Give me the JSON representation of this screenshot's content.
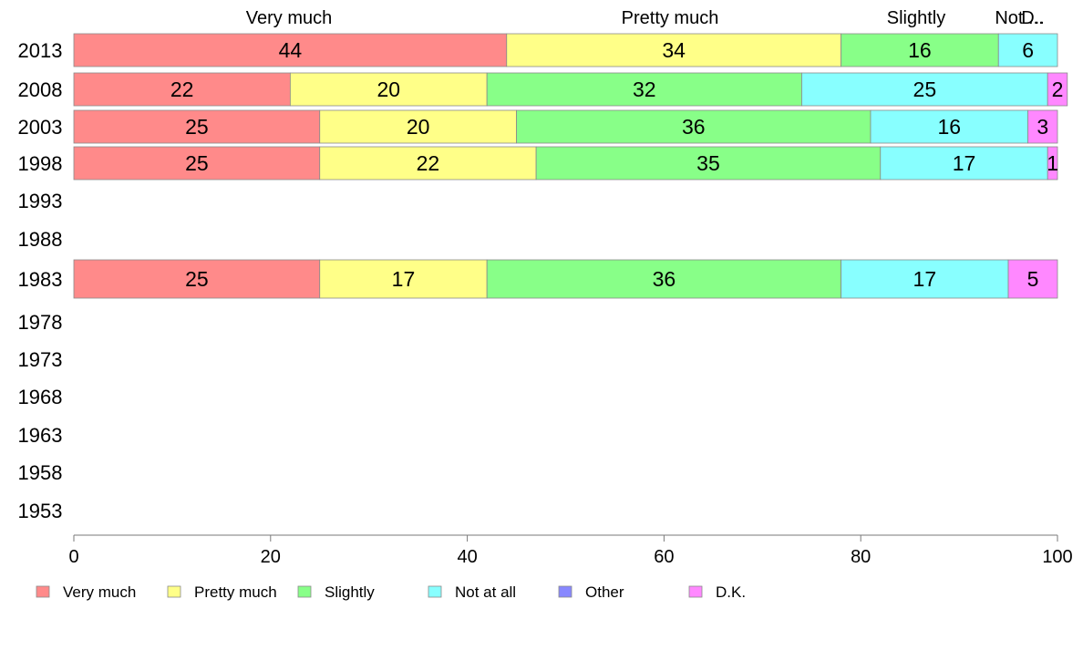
{
  "chart_data": {
    "type": "bar",
    "orientation": "horizontal",
    "stacked": true,
    "categories": [
      "2013",
      "2008",
      "2003",
      "1998",
      "1993",
      "1988",
      "1983",
      "1978",
      "1973",
      "1968",
      "1963",
      "1958",
      "1953"
    ],
    "series": [
      {
        "name": "Very much",
        "color": "#ff8a8a",
        "values": [
          44,
          22,
          25,
          25,
          null,
          null,
          25,
          null,
          null,
          null,
          null,
          null,
          null
        ]
      },
      {
        "name": "Pretty much",
        "color": "#ffff88",
        "values": [
          34,
          20,
          20,
          22,
          null,
          null,
          17,
          null,
          null,
          null,
          null,
          null,
          null
        ]
      },
      {
        "name": "Slightly",
        "color": "#88ff88",
        "values": [
          16,
          32,
          36,
          35,
          null,
          null,
          36,
          null,
          null,
          null,
          null,
          null,
          null
        ]
      },
      {
        "name": "Not at all",
        "color": "#88ffff",
        "values": [
          6,
          25,
          16,
          17,
          null,
          null,
          17,
          null,
          null,
          null,
          null,
          null,
          null
        ]
      },
      {
        "name": "Other",
        "color": "#8888ff",
        "values": [
          0,
          0,
          0,
          0,
          null,
          null,
          0,
          null,
          null,
          null,
          null,
          null,
          null
        ]
      },
      {
        "name": "D.K.",
        "color": "#ff88ff",
        "values": [
          0,
          2,
          3,
          1,
          null,
          null,
          5,
          null,
          null,
          null,
          null,
          null,
          null
        ]
      }
    ],
    "top_labels": [
      "Very much",
      "Pretty much",
      "Slightly",
      "Not at all",
      "D.K."
    ],
    "top_labels_display": [
      "Very much",
      "Pretty much",
      "Slightly",
      "Not ...",
      "D.."
    ],
    "xlim": [
      0,
      100
    ],
    "xticks": [
      0,
      20,
      40,
      60,
      80,
      100
    ],
    "grid": false,
    "legend_position": "bottom"
  }
}
